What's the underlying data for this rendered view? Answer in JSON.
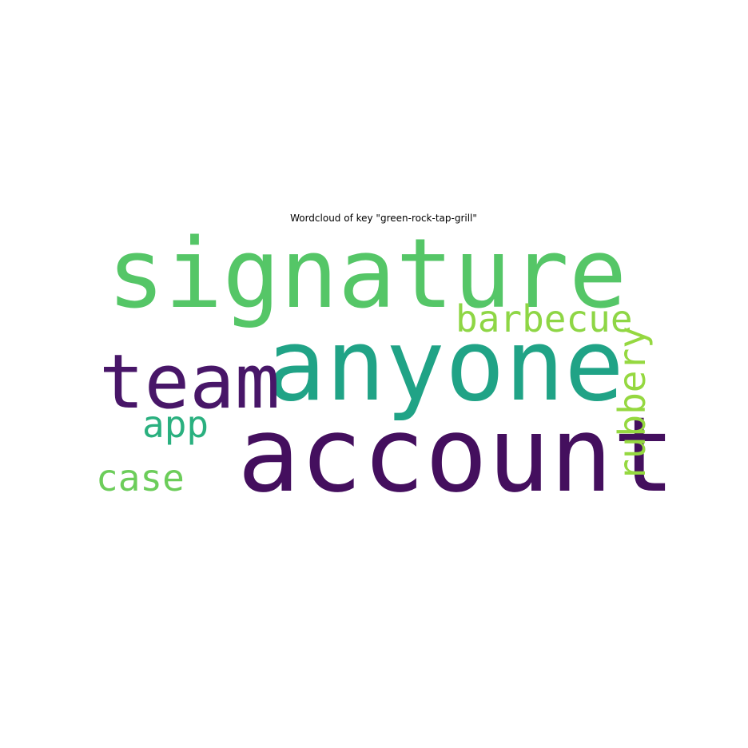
{
  "title": "Wordcloud of key \"green-rock-tap-grill\"",
  "words": [
    {
      "text": "signature",
      "color": "#55c667"
    },
    {
      "text": "anyone",
      "color": "#20a386"
    },
    {
      "text": "account",
      "color": "#440f5e"
    },
    {
      "text": "team",
      "color": "#481668"
    },
    {
      "text": "barbecue",
      "color": "#8ed645"
    },
    {
      "text": "rubbery",
      "color": "#95d840"
    },
    {
      "text": "app",
      "color": "#2ab07f"
    },
    {
      "text": "case",
      "color": "#6ccd5a"
    }
  ]
}
